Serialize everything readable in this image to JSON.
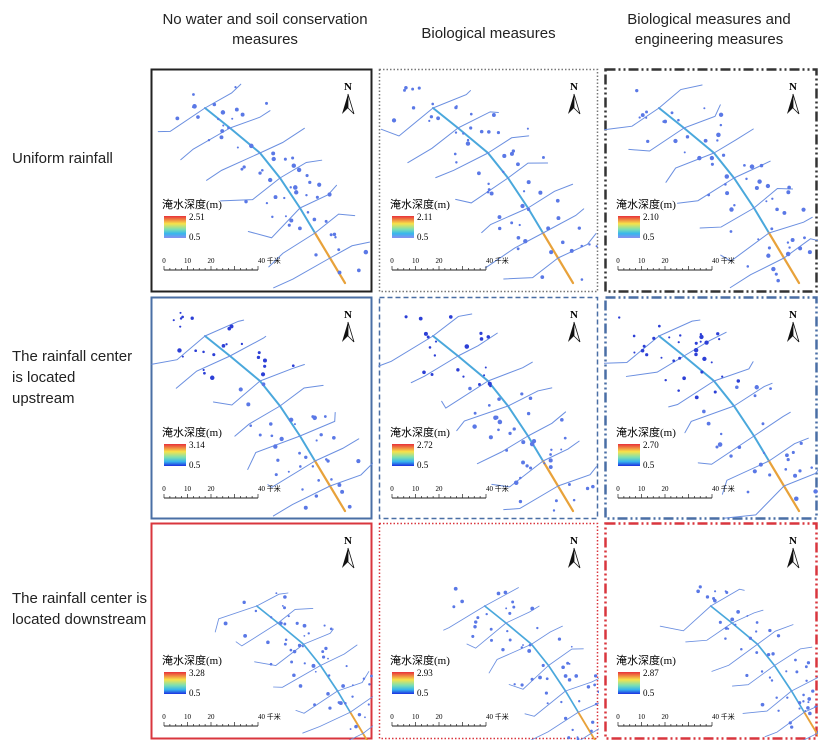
{
  "columns": [
    "No water and soil conservation measures",
    "Biological measures",
    "Biological measures and engineering measures"
  ],
  "rows": [
    "Uniform rainfall",
    "The rainfall center is located upstream",
    "The rainfall center is located downstream"
  ],
  "legend_title": "淹水深度(m)",
  "legend_min": "0.5",
  "north": "N",
  "scale_labels": [
    "0",
    "10",
    "20",
    "40 千米"
  ],
  "panels": [
    [
      "2.51",
      "2.11",
      "2.10"
    ],
    [
      "3.14",
      "2.72",
      "2.70"
    ],
    [
      "3.28",
      "2.93",
      "2.87"
    ]
  ]
}
